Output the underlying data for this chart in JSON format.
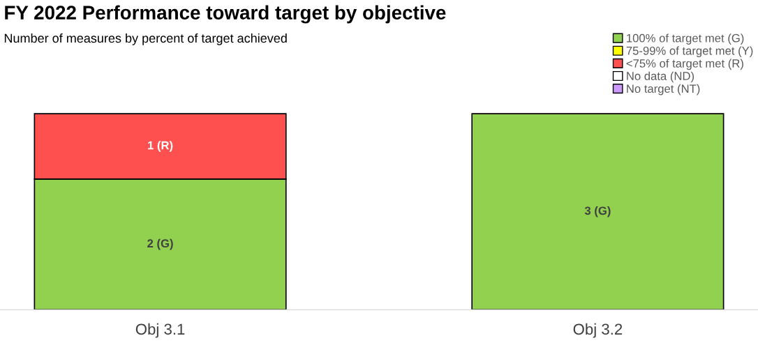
{
  "chart_data": {
    "type": "bar",
    "stacked": true,
    "title": "FY 2022 Performance toward target by objective",
    "subtitle": "Number of measures by percent of target achieved",
    "categories": [
      "Obj 3.1",
      "Obj 3.2"
    ],
    "legend": "top right",
    "series": [
      {
        "name": "100% of target met (G)",
        "color": "#92d050",
        "values": [
          2,
          3
        ],
        "value_labels": [
          "2 (G)",
          "3 (G)"
        ]
      },
      {
        "name": "75-99% of target met (Y)",
        "color": "#ffff00",
        "values": [
          null,
          null
        ]
      },
      {
        "name": "<75% of target met (R)",
        "color": "#ff5050",
        "values": [
          1,
          null
        ],
        "value_labels": [
          "1 (R)",
          null
        ]
      },
      {
        "name": "No data (ND)",
        "color": "#ffffff",
        "values": [
          null,
          null
        ]
      },
      {
        "name": "No target (NT)",
        "color": "#cc99ff",
        "values": [
          null,
          null
        ]
      }
    ]
  }
}
